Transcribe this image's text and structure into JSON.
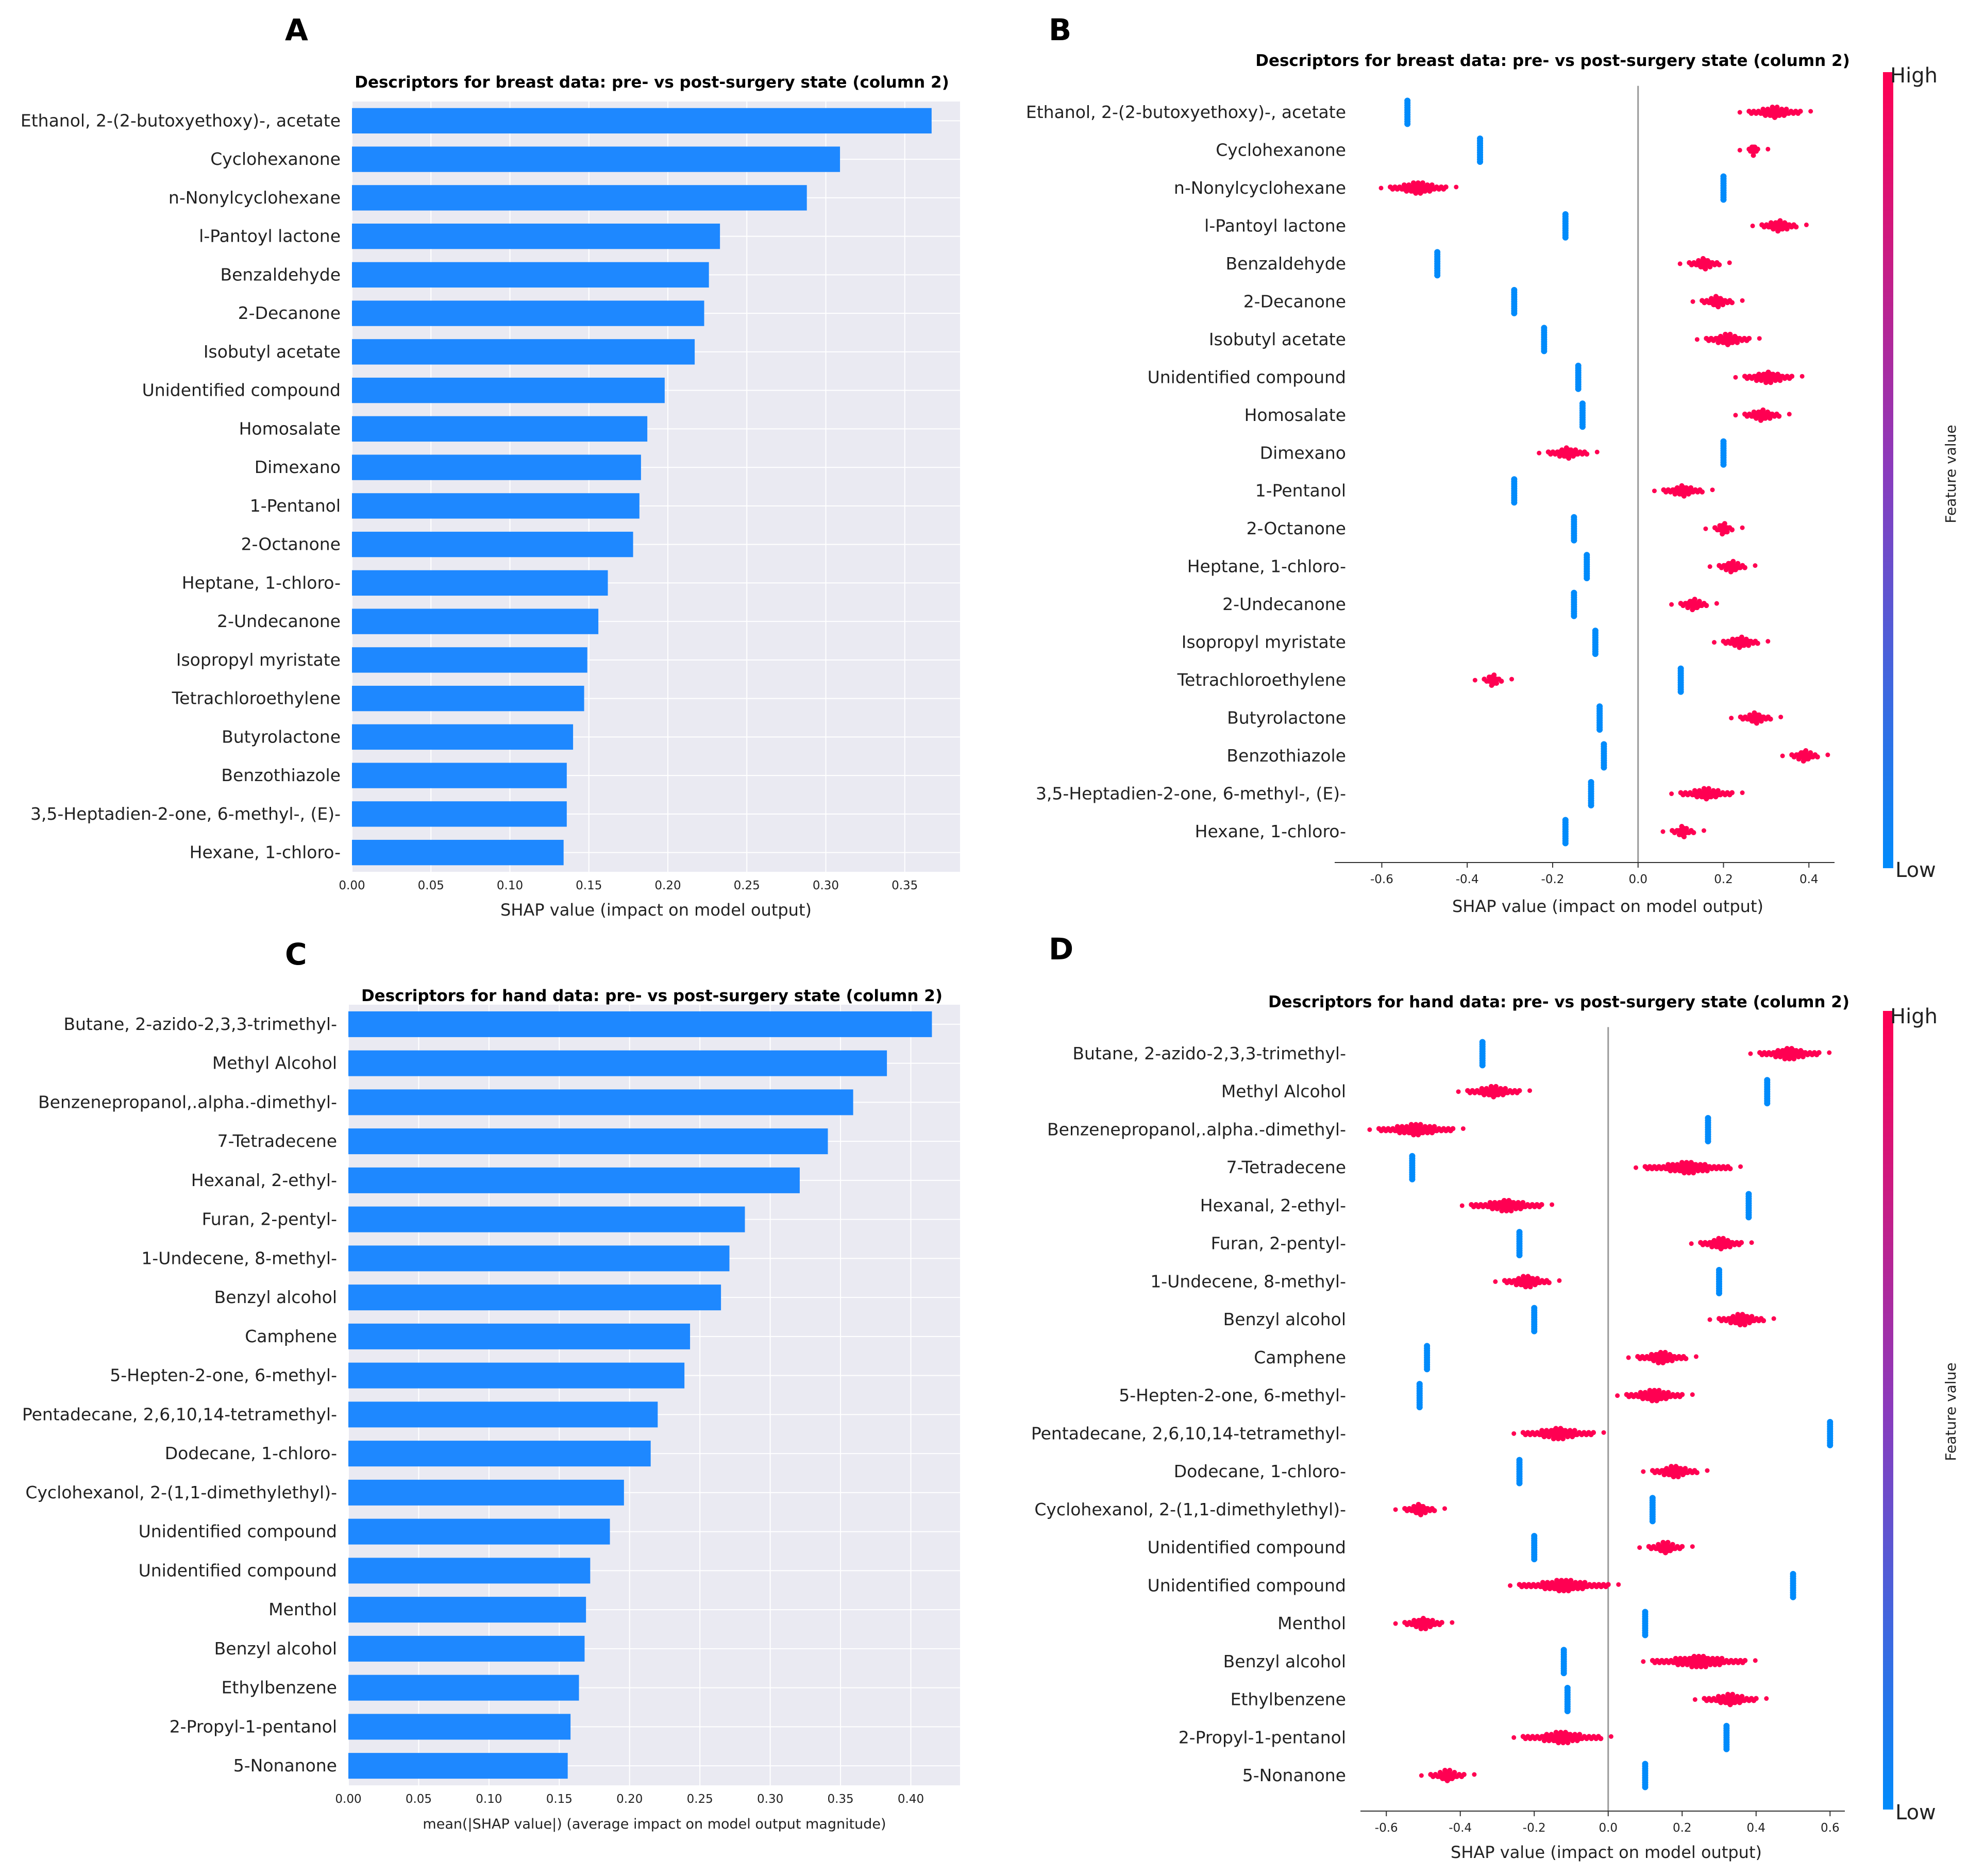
{
  "chart_data": [
    {
      "panel": "A",
      "type": "bar",
      "orientation": "horizontal",
      "title": "Descriptors for breast data: pre- vs post-surgery state (column 2)",
      "xlabel": "SHAP value (impact on model output)",
      "ylabel": "",
      "xlim": [
        0,
        0.385
      ],
      "xticks": [
        "0.00",
        "0.05",
        "0.10",
        "0.15",
        "0.20",
        "0.25",
        "0.30",
        "0.35"
      ],
      "grid": true,
      "colors": {
        "bar": "#1e88ff",
        "background": "#eaeaf2",
        "grid": "#ffffff"
      },
      "categories": [
        "Ethanol, 2-(2-butoxyethoxy)-, acetate",
        "Cyclohexanone",
        "n-Nonylcyclohexane",
        "l-Pantoyl lactone",
        "Benzaldehyde",
        "2-Decanone",
        "Isobutyl acetate",
        "Unidentified compound",
        "Homosalate",
        "Dimexano",
        "1-Pentanol",
        "2-Octanone",
        "Heptane, 1-chloro-",
        "2-Undecanone",
        "Isopropyl myristate",
        "Tetrachloroethylene",
        "Butyrolactone",
        "Benzothiazole",
        "3,5-Heptadien-2-one, 6-methyl-, (E)-",
        "Hexane, 1-chloro-"
      ],
      "values": [
        0.367,
        0.309,
        0.288,
        0.233,
        0.226,
        0.223,
        0.217,
        0.198,
        0.187,
        0.183,
        0.182,
        0.178,
        0.162,
        0.156,
        0.149,
        0.147,
        0.14,
        0.136,
        0.136,
        0.134
      ]
    },
    {
      "panel": "B",
      "type": "scatter",
      "subtype": "shap-beeswarm",
      "title": "Descriptors for breast data: pre- vs post-surgery state (column 2)",
      "xlabel": "SHAP value (impact on model output)",
      "xlim": [
        -0.65,
        0.46
      ],
      "xticks": [
        -0.6,
        -0.4,
        -0.2,
        0.0,
        0.2,
        0.4
      ],
      "xtick_labels": [
        "-0.6",
        "-0.4",
        "-0.2",
        "0.0",
        "0.2",
        "0.4"
      ],
      "colorbar": {
        "label": "Feature value",
        "high": "High",
        "low": "Low",
        "high_color": "#ff0052",
        "low_color": "#008bfb"
      },
      "features": [
        {
          "name": "Ethanol, 2-(2-butoxyethoxy)-, acetate",
          "low": -0.54,
          "high": [
            0.26,
            0.38
          ]
        },
        {
          "name": "Cyclohexanone",
          "low": -0.37,
          "high": [
            0.26,
            0.28
          ]
        },
        {
          "name": "n-Nonylcyclohexane",
          "low": 0.2,
          "high": [
            -0.58,
            -0.45
          ]
        },
        {
          "name": "l-Pantoyl lactone",
          "low": -0.17,
          "high": [
            0.29,
            0.37
          ]
        },
        {
          "name": "Benzaldehyde",
          "low": -0.47,
          "high": [
            0.12,
            0.19
          ]
        },
        {
          "name": "2-Decanone",
          "low": -0.29,
          "high": [
            0.15,
            0.22
          ]
        },
        {
          "name": "Isobutyl acetate",
          "low": -0.22,
          "high": [
            0.16,
            0.26
          ]
        },
        {
          "name": "Unidentified compound",
          "low": -0.14,
          "high": [
            0.25,
            0.36
          ]
        },
        {
          "name": "Homosalate",
          "low": -0.13,
          "high": [
            0.25,
            0.33
          ]
        },
        {
          "name": "Dimexano",
          "low": 0.2,
          "high": [
            -0.21,
            -0.12
          ]
        },
        {
          "name": "1-Pentanol",
          "low": -0.29,
          "high": [
            0.06,
            0.15
          ]
        },
        {
          "name": "2-Octanone",
          "low": -0.15,
          "high": [
            0.18,
            0.22
          ]
        },
        {
          "name": "Heptane, 1-chloro-",
          "low": -0.12,
          "high": [
            0.19,
            0.25
          ]
        },
        {
          "name": "2-Undecanone",
          "low": -0.15,
          "high": [
            0.1,
            0.16
          ]
        },
        {
          "name": "Isopropyl myristate",
          "low": -0.1,
          "high": [
            0.2,
            0.28
          ]
        },
        {
          "name": "Tetrachloroethylene",
          "low": 0.1,
          "high": [
            -0.36,
            -0.32
          ]
        },
        {
          "name": "Butyrolactone",
          "low": -0.09,
          "high": [
            0.24,
            0.31
          ]
        },
        {
          "name": "Benzothiazole",
          "low": -0.08,
          "high": [
            0.36,
            0.42
          ]
        },
        {
          "name": "3,5-Heptadien-2-one, 6-methyl-, (E)-",
          "low": -0.11,
          "high": [
            0.1,
            0.22
          ]
        },
        {
          "name": "Hexane, 1-chloro-",
          "low": -0.17,
          "high": [
            0.08,
            0.13
          ]
        }
      ]
    },
    {
      "panel": "C",
      "type": "bar",
      "orientation": "horizontal",
      "title": "Descriptors for hand data: pre- vs post-surgery state (column 2)",
      "xlabel": "mean(|SHAP value|) (average impact on model output magnitude)",
      "ylabel": "",
      "xlim": [
        0,
        0.435
      ],
      "xticks": [
        "0.00",
        "0.05",
        "0.10",
        "0.15",
        "0.20",
        "0.25",
        "0.30",
        "0.35",
        "0.40"
      ],
      "grid": true,
      "colors": {
        "bar": "#1e88ff",
        "background": "#eaeaf2",
        "grid": "#ffffff"
      },
      "categories": [
        "Butane, 2-azido-2,3,3-trimethyl-",
        "Methyl Alcohol",
        "Benzenepropanol,.alpha.-dimethyl-",
        "7-Tetradecene",
        "Hexanal, 2-ethyl-",
        "Furan, 2-pentyl-",
        "1-Undecene, 8-methyl-",
        "Benzyl alcohol",
        "Camphene",
        "5-Hepten-2-one, 6-methyl-",
        "Pentadecane, 2,6,10,14-tetramethyl-",
        "Dodecane, 1-chloro-",
        "Cyclohexanol, 2-(1,1-dimethylethyl)-",
        "Unidentified compound",
        "Unidentified compound",
        "Menthol",
        "Benzyl alcohol",
        "Ethylbenzene",
        "2-Propyl-1-pentanol",
        "5-Nonanone"
      ],
      "values": [
        0.415,
        0.383,
        0.359,
        0.341,
        0.321,
        0.282,
        0.271,
        0.265,
        0.243,
        0.239,
        0.22,
        0.215,
        0.196,
        0.186,
        0.172,
        0.169,
        0.168,
        0.164,
        0.158,
        0.156
      ]
    },
    {
      "panel": "D",
      "type": "scatter",
      "subtype": "shap-beeswarm",
      "title": "Descriptors for hand data: pre- vs post-surgery state (column 2)",
      "xlabel": "SHAP value (impact on model output)",
      "xlim": [
        -0.67,
        0.64
      ],
      "xticks": [
        -0.6,
        -0.4,
        -0.2,
        0.0,
        0.2,
        0.4,
        0.6
      ],
      "xtick_labels": [
        "-0.6",
        "-0.4",
        "-0.2",
        "0.0",
        "0.2",
        "0.4",
        "0.6"
      ],
      "colorbar": {
        "label": "Feature value",
        "high": "High",
        "low": "Low",
        "high_color": "#ff0052",
        "low_color": "#008bfb"
      },
      "features": [
        {
          "name": "Butane, 2-azido-2,3,3-trimethyl-",
          "low": -0.34,
          "high": [
            0.41,
            0.57
          ]
        },
        {
          "name": "Methyl Alcohol",
          "low": 0.43,
          "high": [
            -0.38,
            -0.24
          ]
        },
        {
          "name": "Benzenepropanol,.alpha.-dimethyl-",
          "low": 0.27,
          "high": [
            -0.62,
            -0.42
          ]
        },
        {
          "name": "7-Tetradecene",
          "low": -0.53,
          "high": [
            0.1,
            0.33
          ]
        },
        {
          "name": "Hexanal, 2-ethyl-",
          "low": 0.38,
          "high": [
            -0.37,
            -0.18
          ]
        },
        {
          "name": "Furan, 2-pentyl-",
          "low": -0.24,
          "high": [
            0.25,
            0.36
          ]
        },
        {
          "name": "1-Undecene, 8-methyl-",
          "low": 0.3,
          "high": [
            -0.28,
            -0.16
          ]
        },
        {
          "name": "Benzyl alcohol",
          "low": -0.2,
          "high": [
            0.3,
            0.42
          ]
        },
        {
          "name": "Camphene",
          "low": -0.49,
          "high": [
            0.08,
            0.21
          ]
        },
        {
          "name": "5-Hepten-2-one, 6-methyl-",
          "low": -0.51,
          "high": [
            0.05,
            0.2
          ]
        },
        {
          "name": "Pentadecane, 2,6,10,14-tetramethyl-",
          "low": 0.6,
          "high": [
            -0.23,
            -0.04
          ]
        },
        {
          "name": "Dodecane, 1-chloro-",
          "low": -0.24,
          "high": [
            0.12,
            0.24
          ]
        },
        {
          "name": "Cyclohexanol, 2-(1,1-dimethylethyl)-",
          "low": 0.12,
          "high": [
            -0.55,
            -0.47
          ]
        },
        {
          "name": "Unidentified compound",
          "low": -0.2,
          "high": [
            0.11,
            0.2
          ]
        },
        {
          "name": "Unidentified compound",
          "low": 0.5,
          "high": [
            -0.24,
            0.0
          ]
        },
        {
          "name": "Menthol",
          "low": 0.1,
          "high": [
            -0.55,
            -0.45
          ]
        },
        {
          "name": "Benzyl alcohol",
          "low": -0.12,
          "high": [
            0.12,
            0.37
          ]
        },
        {
          "name": "Ethylbenzene",
          "low": -0.11,
          "high": [
            0.26,
            0.4
          ]
        },
        {
          "name": "2-Propyl-1-pentanol",
          "low": 0.32,
          "high": [
            -0.23,
            -0.02
          ]
        },
        {
          "name": "5-Nonanone",
          "low": 0.1,
          "high": [
            -0.48,
            -0.39
          ]
        }
      ]
    }
  ]
}
